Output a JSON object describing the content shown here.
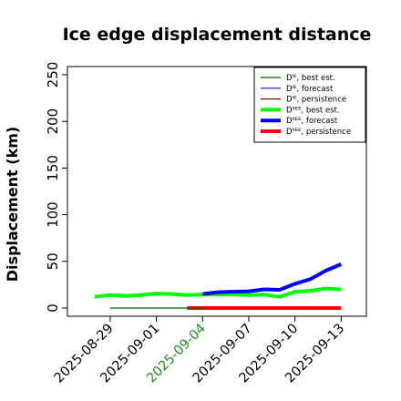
{
  "chart_data": {
    "type": "line",
    "title": "Ice edge displacement distance",
    "xlabel": "",
    "ylabel": "Displacement (km)",
    "ylim": [
      0,
      260
    ],
    "yticks": [
      0,
      50,
      100,
      150,
      200,
      250
    ],
    "x": [
      "2025-08-28",
      "2025-08-29",
      "2025-08-30",
      "2025-08-31",
      "2025-09-01",
      "2025-09-02",
      "2025-09-03",
      "2025-09-04",
      "2025-09-05",
      "2025-09-06",
      "2025-09-07",
      "2025-09-08",
      "2025-09-09",
      "2025-09-10",
      "2025-09-11",
      "2025-09-12",
      "2025-09-13"
    ],
    "xticks": [
      "2025-08-29",
      "2025-09-01",
      "2025-09-04",
      "2025-09-07",
      "2025-09-10",
      "2025-09-13"
    ],
    "xtick_highlight": "2025-09-04",
    "xtick_highlight_color": "#228B22",
    "legend_position": "top-right",
    "series": [
      {
        "name": "Dᴵᴱ, best est.",
        "color": "#006400",
        "width": 1.2,
        "x": [
          "2025-08-29",
          "2025-08-30",
          "2025-08-31",
          "2025-09-01",
          "2025-09-02",
          "2025-09-03",
          "2025-09-04"
        ],
        "values": [
          0,
          0,
          0,
          0,
          0,
          0,
          0
        ]
      },
      {
        "name": "Dᴵᴱ, forecast",
        "color": "#0000ff",
        "width": 1.2,
        "x": [],
        "values": []
      },
      {
        "name": "Dᴵᴱ, persistence",
        "color": "#8b0000",
        "width": 1.2,
        "x": [],
        "values": []
      },
      {
        "name": "Dᴵᴵᴱᴱ, best est.",
        "color": "#00ff00",
        "width": 4,
        "x": [
          "2025-08-28",
          "2025-08-29",
          "2025-08-30",
          "2025-08-31",
          "2025-09-01",
          "2025-09-02",
          "2025-09-03",
          "2025-09-04",
          "2025-09-05",
          "2025-09-06",
          "2025-09-07",
          "2025-09-08",
          "2025-09-09",
          "2025-09-10",
          "2025-09-11",
          "2025-09-12",
          "2025-09-13"
        ],
        "values": [
          12,
          14,
          13,
          14,
          15.5,
          15,
          14,
          14.5,
          14.5,
          14.5,
          14,
          14.5,
          12,
          17.5,
          18.5,
          21,
          20
        ]
      },
      {
        "name": "Dᴵᴵᴱᴱ, forecast",
        "color": "#0000ff",
        "width": 4,
        "x": [
          "2025-09-04",
          "2025-09-05",
          "2025-09-06",
          "2025-09-07",
          "2025-09-08",
          "2025-09-09",
          "2025-09-10",
          "2025-09-11",
          "2025-09-12",
          "2025-09-13"
        ],
        "values": [
          15,
          17,
          17.5,
          18,
          20,
          19.5,
          26,
          31,
          40,
          47
        ]
      },
      {
        "name": "Dᴵᴵᴱᴱ, persistence",
        "color": "#ff0000",
        "width": 4,
        "x": [
          "2025-09-03",
          "2025-09-04",
          "2025-09-05",
          "2025-09-06",
          "2025-09-07",
          "2025-09-08",
          "2025-09-09",
          "2025-09-10",
          "2025-09-11",
          "2025-09-12",
          "2025-09-13"
        ],
        "values": [
          0,
          0,
          0,
          0,
          0,
          0,
          0,
          0,
          0,
          0,
          0
        ]
      }
    ]
  }
}
